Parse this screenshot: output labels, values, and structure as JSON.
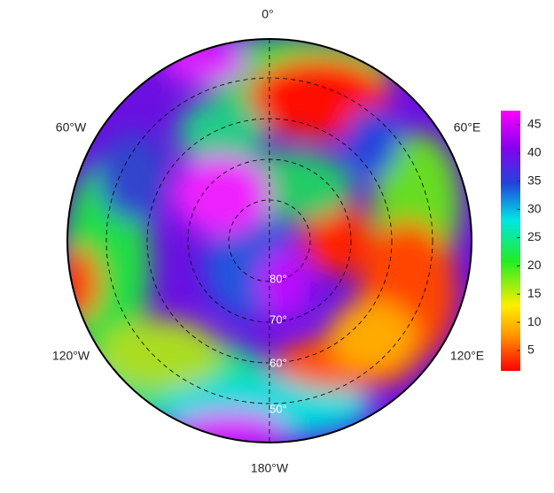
{
  "map": {
    "lon_labels": [
      "0°",
      "60°W",
      "60°E",
      "120°W",
      "120°E",
      "180°W"
    ],
    "lat_labels": [
      "80°",
      "70°",
      "60°",
      "50°"
    ],
    "colorbar": {
      "lim": [
        1.4,
        47.5
      ],
      "ticks": [
        5,
        10,
        15,
        20,
        25,
        30,
        35,
        40,
        45
      ]
    }
  }
}
